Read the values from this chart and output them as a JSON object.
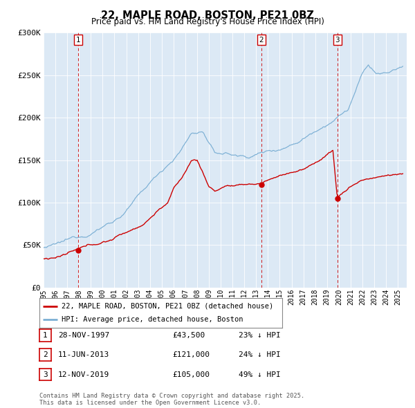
{
  "title": "22, MAPLE ROAD, BOSTON, PE21 0BZ",
  "subtitle": "Price paid vs. HM Land Registry's House Price Index (HPI)",
  "bg_color": "#dce9f5",
  "red_line_color": "#cc0000",
  "blue_line_color": "#7bafd4",
  "ylim": [
    0,
    300000
  ],
  "yticks": [
    0,
    50000,
    100000,
    150000,
    200000,
    250000,
    300000
  ],
  "ytick_labels": [
    "£0",
    "£50K",
    "£100K",
    "£150K",
    "£200K",
    "£250K",
    "£300K"
  ],
  "xmin": 1995.0,
  "xmax": 2025.75,
  "sales": [
    {
      "num": 1,
      "date": "28-NOV-1997",
      "price": 43500,
      "year": 1997.91,
      "label": "23% ↓ HPI"
    },
    {
      "num": 2,
      "date": "11-JUN-2013",
      "price": 121000,
      "year": 2013.44,
      "label": "24% ↓ HPI"
    },
    {
      "num": 3,
      "date": "12-NOV-2019",
      "price": 105000,
      "year": 2019.87,
      "label": "49% ↓ HPI"
    }
  ],
  "legend_red": "22, MAPLE ROAD, BOSTON, PE21 0BZ (detached house)",
  "legend_blue": "HPI: Average price, detached house, Boston",
  "footer": "Contains HM Land Registry data © Crown copyright and database right 2025.\nThis data is licensed under the Open Government Licence v3.0."
}
